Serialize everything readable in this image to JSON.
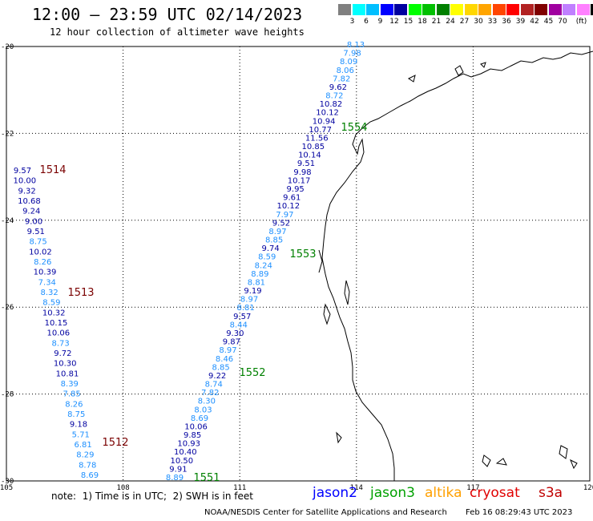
{
  "header": {
    "title": "12:00 – 23:59 UTC 02/14/2023",
    "subtitle": "12 hour collection of altimeter wave heights"
  },
  "colorbar": {
    "unit": "(ft)",
    "colors": [
      "#808080",
      "#00ffff",
      "#00bfff",
      "#0000ff",
      "#0000a0",
      "#00ff00",
      "#00c000",
      "#008000",
      "#ffff00",
      "#ffd700",
      "#ffa500",
      "#ff4500",
      "#ff0000",
      "#b22222",
      "#800000",
      "#a000a0",
      "#c080ff",
      "#ff80ff",
      "#000000"
    ],
    "labels": [
      "3",
      "6",
      "9",
      "12",
      "15",
      "18",
      "21",
      "24",
      "27",
      "30",
      "33",
      "36",
      "39",
      "42",
      "45",
      "70"
    ]
  },
  "map": {
    "lon_range": [
      105,
      120
    ],
    "lat_range": [
      -30,
      -20
    ],
    "lon_ticks": [
      "105",
      "108",
      "111",
      "114",
      "117",
      "120"
    ],
    "lat_ticks": [
      "-20",
      "-22",
      "-24",
      "-26",
      "-28",
      "-30"
    ]
  },
  "passes": [
    {
      "id": "1514",
      "satellite": "cryosat",
      "color": "#7a0000"
    },
    {
      "id": "1513",
      "satellite": "cryosat",
      "color": "#7a0000"
    },
    {
      "id": "1512",
      "satellite": "cryosat",
      "color": "#7a0000"
    },
    {
      "id": "1554",
      "satellite": "jason3",
      "color": "#008000"
    },
    {
      "id": "1553",
      "satellite": "jason3",
      "color": "#008000"
    },
    {
      "id": "1552",
      "satellite": "jason3",
      "color": "#008000"
    },
    {
      "id": "1551",
      "satellite": "jason3",
      "color": "#008000"
    }
  ],
  "track_left": [
    "9.57",
    "10.00",
    "9.32",
    "10.68",
    "9.24",
    "9.00",
    "9.51",
    "8.75",
    "10.02",
    "8.26",
    "10.39",
    "7.34",
    "8.32",
    "8.59",
    "10.32",
    "10.15",
    "10.06",
    "8.73",
    "9.72",
    "10.30",
    "10.81",
    "8.39",
    "7.85",
    "8.26",
    "8.75",
    "9.18",
    "5.71",
    "6.81",
    "8.29",
    "8.78",
    "8.69"
  ],
  "track_right": [
    "8.13",
    "7.98",
    "8.09",
    "8.06",
    "7.82",
    "9.62",
    "8.72",
    "10.82",
    "10.12",
    "10.94",
    "10.77",
    "11.56",
    "10.85",
    "10.14",
    "9.51",
    "9.98",
    "10.17",
    "9.95",
    "9.61",
    "10.12",
    "7.97",
    "9.52",
    "8.97",
    "8.85",
    "9.74",
    "8.59",
    "8.24",
    "8.89",
    "8.81",
    "9.19",
    "8.97",
    "8.81",
    "9.57",
    "8.44",
    "9.30",
    "9.87",
    "8.97",
    "8.46",
    "8.85",
    "9.22",
    "8.74",
    "7.82",
    "8.30",
    "8.03",
    "8.69",
    "10.06",
    "9.85",
    "10.93",
    "10.40",
    "10.50",
    "9.91",
    "8.89"
  ],
  "footer": {
    "note": "note:  1) Time is in UTC;  2) SWH is in feet",
    "satellites": [
      {
        "name": "jason2",
        "color": "#0000ff"
      },
      {
        "name": "jason3",
        "color": "#00a000"
      },
      {
        "name": "altika",
        "color": "#ffa000"
      },
      {
        "name": "cryosat",
        "color": "#e00000"
      },
      {
        "name": "s3a",
        "color": "#c00000"
      }
    ],
    "credit": "NOAA/NESDIS Center for Satellite Applications and Research",
    "timestamp": "Feb 16 08:29:43 UTC 2023"
  }
}
